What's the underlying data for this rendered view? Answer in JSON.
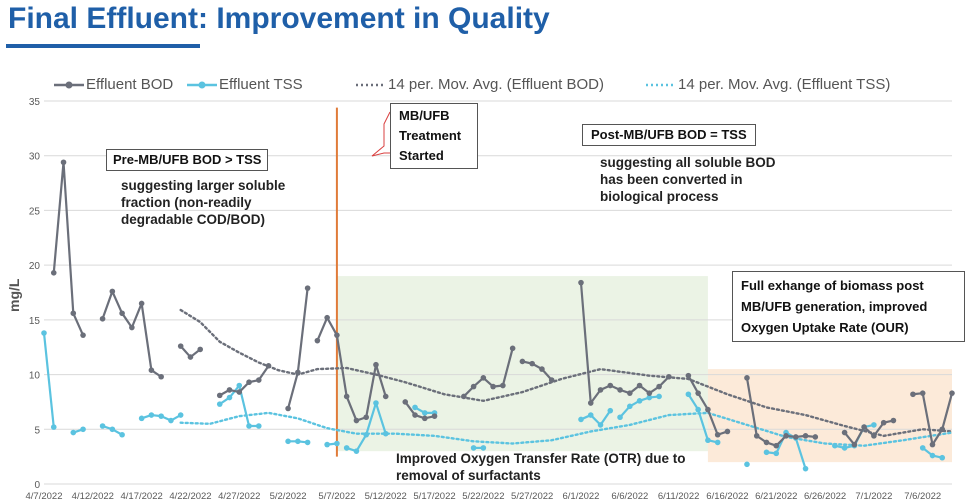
{
  "title": "Final Effluent: Improvement in Quality",
  "legend": {
    "bod": "Effluent BOD",
    "tss": "Effluent TSS",
    "bod_avg": "14 per. Mov. Avg. (Effluent BOD)",
    "tss_avg": "14 per. Mov. Avg. (Effluent TSS)"
  },
  "annotations": {
    "pre_title": "Pre-MB/UFB BOD > TSS",
    "pre_text": "suggesting larger soluble fraction (non-readily degradable COD/BOD)",
    "mb_started": "MB/UFB Treatment Started",
    "post_title": "Post-MB/UFB BOD = TSS",
    "post_text": "suggesting all soluble BOD has been converted in biological process",
    "otr_text": "Improved Oxygen Transfer Rate (OTR) due to removal of surfactants",
    "our_text": "Full exhange of biomass post MB/UFB generation, improved Oxygen Uptake Rate (OUR)"
  },
  "colors": {
    "bod": "#6b6f7a",
    "tss": "#5bc3e0",
    "bod_avg": "#6b6f7a",
    "tss_avg": "#5bc3e0",
    "marker_line": "#e07b39",
    "shade_green": "#e7f1e0",
    "shade_orange": "#fbe6d2",
    "title": "#1f5fa8"
  },
  "chart_data": {
    "type": "line",
    "title": "",
    "xlabel": "",
    "ylabel": "mg/L",
    "ylim": [
      0,
      35
    ],
    "yticks": [
      0,
      5,
      10,
      15,
      20,
      25,
      30,
      35
    ],
    "xlim": [
      "2022-04-07",
      "2022-07-09"
    ],
    "xticks": [
      "4/7/2022",
      "4/12/2022",
      "4/17/2022",
      "4/22/2022",
      "4/27/2022",
      "5/2/2022",
      "5/7/2022",
      "5/12/2022",
      "5/17/2022",
      "5/22/2022",
      "5/27/2022",
      "6/1/2022",
      "6/6/2022",
      "6/11/2022",
      "6/16/2022",
      "6/21/2022",
      "6/26/2022",
      "7/1/2022",
      "7/6/2022"
    ],
    "treatment_start": "2022-05-07",
    "shaded_regions": [
      {
        "start": "2022-05-07",
        "end": "2022-06-14",
        "ymin": 3,
        "ymax": 19,
        "color": "green"
      },
      {
        "start": "2022-06-14",
        "end": "2022-07-09",
        "ymin": 2,
        "ymax": 10.5,
        "color": "orange"
      }
    ],
    "grid": true,
    "legend_position": "top",
    "series": [
      {
        "name": "Effluent BOD",
        "style": "solid-markers",
        "segments": [
          [
            [
              "2022-04-08",
              19.3
            ],
            [
              "2022-04-09",
              29.4
            ],
            [
              "2022-04-10",
              15.6
            ],
            [
              "2022-04-11",
              13.6
            ]
          ],
          [
            [
              "2022-04-13",
              15.1
            ],
            [
              "2022-04-14",
              17.6
            ],
            [
              "2022-04-15",
              15.6
            ],
            [
              "2022-04-16",
              14.3
            ],
            [
              "2022-04-17",
              16.5
            ],
            [
              "2022-04-18",
              10.4
            ],
            [
              "2022-04-19",
              9.8
            ]
          ],
          [
            [
              "2022-04-21",
              12.6
            ],
            [
              "2022-04-22",
              11.6
            ],
            [
              "2022-04-23",
              12.3
            ]
          ],
          [
            [
              "2022-04-25",
              8.1
            ],
            [
              "2022-04-26",
              8.6
            ],
            [
              "2022-04-27",
              8.4
            ],
            [
              "2022-04-28",
              9.3
            ],
            [
              "2022-04-29",
              9.5
            ],
            [
              "2022-04-30",
              10.8
            ]
          ],
          [
            [
              "2022-05-02",
              6.9
            ],
            [
              "2022-05-03",
              10.2
            ],
            [
              "2022-05-04",
              17.9
            ]
          ],
          [
            [
              "2022-05-05",
              13.1
            ],
            [
              "2022-05-06",
              15.2
            ],
            [
              "2022-05-07",
              13.6
            ],
            [
              "2022-05-08",
              8.0
            ],
            [
              "2022-05-09",
              5.8
            ],
            [
              "2022-05-10",
              6.1
            ],
            [
              "2022-05-11",
              10.9
            ],
            [
              "2022-05-12",
              8.0
            ]
          ],
          [
            [
              "2022-05-14",
              7.5
            ],
            [
              "2022-05-15",
              6.3
            ],
            [
              "2022-05-16",
              6.0
            ],
            [
              "2022-05-17",
              6.2
            ]
          ],
          [
            [
              "2022-05-20",
              8.0
            ],
            [
              "2022-05-21",
              8.9
            ],
            [
              "2022-05-22",
              9.7
            ],
            [
              "2022-05-23",
              8.9
            ],
            [
              "2022-05-24",
              9.0
            ],
            [
              "2022-05-25",
              12.4
            ]
          ],
          [
            [
              "2022-05-26",
              11.2
            ],
            [
              "2022-05-27",
              11.0
            ],
            [
              "2022-05-28",
              10.5
            ],
            [
              "2022-05-29",
              9.5
            ]
          ],
          [
            [
              "2022-06-01",
              18.4
            ],
            [
              "2022-06-02",
              7.4
            ],
            [
              "2022-06-03",
              8.6
            ],
            [
              "2022-06-04",
              9.0
            ],
            [
              "2022-06-05",
              8.6
            ],
            [
              "2022-06-06",
              8.3
            ],
            [
              "2022-06-07",
              9.0
            ],
            [
              "2022-06-08",
              8.3
            ],
            [
              "2022-06-09",
              8.9
            ],
            [
              "2022-06-10",
              9.8
            ]
          ],
          [
            [
              "2022-06-12",
              9.9
            ],
            [
              "2022-06-13",
              8.3
            ],
            [
              "2022-06-14",
              6.8
            ],
            [
              "2022-06-15",
              4.5
            ],
            [
              "2022-06-16",
              4.8
            ]
          ],
          [
            [
              "2022-06-18",
              9.7
            ],
            [
              "2022-06-19",
              4.4
            ],
            [
              "2022-06-20",
              3.8
            ],
            [
              "2022-06-21",
              3.5
            ],
            [
              "2022-06-22",
              4.4
            ],
            [
              "2022-06-23",
              4.3
            ],
            [
              "2022-06-24",
              4.4
            ],
            [
              "2022-06-25",
              4.3
            ]
          ],
          [
            [
              "2022-06-28",
              4.7
            ],
            [
              "2022-06-29",
              3.6
            ],
            [
              "2022-06-30",
              5.2
            ],
            [
              "2022-07-01",
              4.4
            ],
            [
              "2022-07-02",
              5.6
            ],
            [
              "2022-07-03",
              5.8
            ]
          ],
          [
            [
              "2022-07-05",
              8.2
            ],
            [
              "2022-07-06",
              8.3
            ],
            [
              "2022-07-07",
              3.6
            ],
            [
              "2022-07-08",
              5.0
            ],
            [
              "2022-07-09",
              8.3
            ]
          ]
        ]
      },
      {
        "name": "Effluent TSS",
        "style": "solid-markers",
        "segments": [
          [
            [
              "2022-04-07",
              13.8
            ],
            [
              "2022-04-08",
              5.2
            ]
          ],
          [
            [
              "2022-04-10",
              4.7
            ],
            [
              "2022-04-11",
              5.0
            ]
          ],
          [
            [
              "2022-04-13",
              5.3
            ],
            [
              "2022-04-14",
              5.0
            ],
            [
              "2022-04-15",
              4.5
            ]
          ],
          [
            [
              "2022-04-17",
              6.0
            ],
            [
              "2022-04-18",
              6.3
            ],
            [
              "2022-04-19",
              6.2
            ],
            [
              "2022-04-20",
              5.8
            ],
            [
              "2022-04-21",
              6.3
            ]
          ],
          [
            [
              "2022-04-25",
              7.3
            ],
            [
              "2022-04-26",
              7.9
            ],
            [
              "2022-04-27",
              9.0
            ],
            [
              "2022-04-28",
              5.3
            ],
            [
              "2022-04-29",
              5.3
            ]
          ],
          [
            [
              "2022-05-02",
              3.9
            ],
            [
              "2022-05-03",
              3.9
            ],
            [
              "2022-05-04",
              3.8
            ]
          ],
          [
            [
              "2022-05-06",
              3.6
            ],
            [
              "2022-05-07",
              3.7
            ]
          ],
          [
            [
              "2022-05-08",
              3.3
            ],
            [
              "2022-05-09",
              3.0
            ],
            [
              "2022-05-10",
              4.5
            ],
            [
              "2022-05-11",
              7.4
            ],
            [
              "2022-05-12",
              4.6
            ]
          ],
          [
            [
              "2022-05-15",
              7.0
            ],
            [
              "2022-05-16",
              6.5
            ],
            [
              "2022-05-17",
              6.5
            ]
          ],
          [
            [
              "2022-05-21",
              3.3
            ],
            [
              "2022-05-22",
              3.3
            ]
          ],
          [
            [
              "2022-06-01",
              5.9
            ],
            [
              "2022-06-02",
              6.3
            ],
            [
              "2022-06-03",
              5.4
            ],
            [
              "2022-06-04",
              6.7
            ]
          ],
          [
            [
              "2022-06-05",
              6.1
            ],
            [
              "2022-06-06",
              7.1
            ],
            [
              "2022-06-07",
              7.6
            ],
            [
              "2022-06-08",
              7.9
            ],
            [
              "2022-06-09",
              8.0
            ]
          ],
          [
            [
              "2022-06-12",
              8.2
            ],
            [
              "2022-06-13",
              6.8
            ],
            [
              "2022-06-14",
              4.0
            ],
            [
              "2022-06-15",
              3.8
            ]
          ],
          [
            [
              "2022-06-18",
              1.8
            ]
          ],
          [
            [
              "2022-06-20",
              2.9
            ],
            [
              "2022-06-21",
              2.8
            ],
            [
              "2022-06-22",
              4.7
            ],
            [
              "2022-06-23",
              4.2
            ],
            [
              "2022-06-24",
              1.4
            ]
          ],
          [
            [
              "2022-06-27",
              3.5
            ],
            [
              "2022-06-28",
              3.3
            ],
            [
              "2022-06-29",
              3.5
            ],
            [
              "2022-06-30",
              5.2
            ],
            [
              "2022-07-01",
              5.4
            ]
          ],
          [
            [
              "2022-07-06",
              3.3
            ],
            [
              "2022-07-07",
              2.6
            ],
            [
              "2022-07-08",
              2.4
            ]
          ]
        ]
      },
      {
        "name": "14 per. Mov. Avg. (Effluent BOD)",
        "style": "dotted",
        "points": [
          [
            "2022-04-21",
            15.9
          ],
          [
            "2022-04-23",
            14.8
          ],
          [
            "2022-04-25",
            13.0
          ],
          [
            "2022-04-27",
            12.0
          ],
          [
            "2022-04-29",
            11.1
          ],
          [
            "2022-05-01",
            10.4
          ],
          [
            "2022-05-03",
            10.0
          ],
          [
            "2022-05-05",
            10.5
          ],
          [
            "2022-05-08",
            10.6
          ],
          [
            "2022-05-11",
            10.0
          ],
          [
            "2022-05-14",
            9.3
          ],
          [
            "2022-05-18",
            8.2
          ],
          [
            "2022-05-22",
            7.6
          ],
          [
            "2022-05-26",
            8.4
          ],
          [
            "2022-05-30",
            9.6
          ],
          [
            "2022-06-03",
            10.5
          ],
          [
            "2022-06-08",
            9.9
          ],
          [
            "2022-06-12",
            9.6
          ],
          [
            "2022-06-16",
            8.2
          ],
          [
            "2022-06-20",
            7.0
          ],
          [
            "2022-06-24",
            6.3
          ],
          [
            "2022-06-28",
            5.3
          ],
          [
            "2022-07-02",
            4.4
          ],
          [
            "2022-07-06",
            5.0
          ],
          [
            "2022-07-09",
            4.8
          ]
        ]
      },
      {
        "name": "14 per. Mov. Avg. (Effluent TSS)",
        "style": "dotted",
        "points": [
          [
            "2022-04-21",
            5.6
          ],
          [
            "2022-04-24",
            5.5
          ],
          [
            "2022-04-27",
            6.2
          ],
          [
            "2022-04-30",
            6.5
          ],
          [
            "2022-05-03",
            6.0
          ],
          [
            "2022-05-06",
            5.1
          ],
          [
            "2022-05-09",
            4.6
          ],
          [
            "2022-05-13",
            4.6
          ],
          [
            "2022-05-17",
            4.4
          ],
          [
            "2022-05-21",
            3.9
          ],
          [
            "2022-05-25",
            3.7
          ],
          [
            "2022-05-29",
            4.0
          ],
          [
            "2022-06-02",
            4.8
          ],
          [
            "2022-06-06",
            5.4
          ],
          [
            "2022-06-10",
            6.3
          ],
          [
            "2022-06-14",
            6.5
          ],
          [
            "2022-06-18",
            5.4
          ],
          [
            "2022-06-22",
            4.3
          ],
          [
            "2022-06-26",
            3.7
          ],
          [
            "2022-06-30",
            3.5
          ],
          [
            "2022-07-04",
            4.0
          ],
          [
            "2022-07-09",
            4.7
          ]
        ]
      }
    ]
  }
}
